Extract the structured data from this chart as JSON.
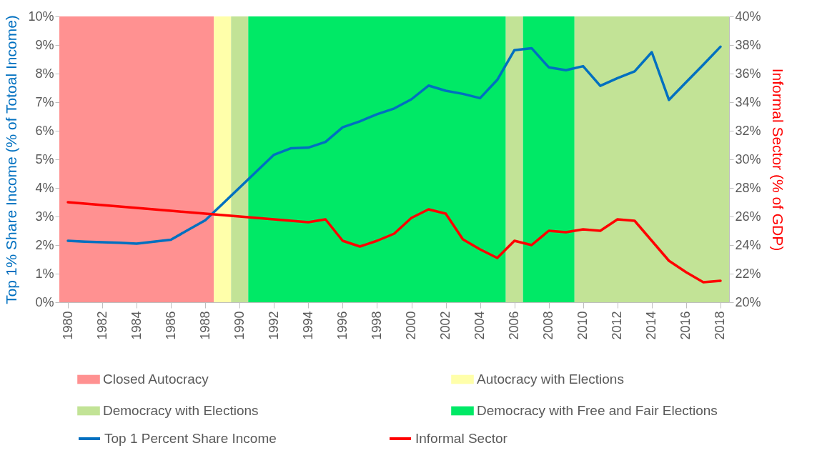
{
  "chart_data": {
    "type": "line",
    "ylabel": "Top 1% Share Income (% of Totoal Income)",
    "y2label": "Informal Sector (% of GDP)",
    "x": [
      1980,
      1981,
      1982,
      1983,
      1984,
      1985,
      1986,
      1987,
      1988,
      1989,
      1990,
      1991,
      1992,
      1993,
      1994,
      1995,
      1996,
      1997,
      1998,
      1999,
      2000,
      2001,
      2002,
      2003,
      2004,
      2005,
      2006,
      2007,
      2008,
      2009,
      2010,
      2011,
      2012,
      2013,
      2014,
      2015,
      2016,
      2017,
      2018
    ],
    "xlim": [
      1979.5,
      2018.5
    ],
    "xticks": [
      1980,
      1982,
      1984,
      1986,
      1988,
      1990,
      1992,
      1994,
      1996,
      1998,
      2000,
      2002,
      2004,
      2006,
      2008,
      2010,
      2012,
      2014,
      2016,
      2018
    ],
    "ylim": [
      0,
      10
    ],
    "yticks": [
      {
        "value": 0,
        "label": "0%"
      },
      {
        "value": 1,
        "label": "1%"
      },
      {
        "value": 2,
        "label": "2%"
      },
      {
        "value": 3,
        "label": "3%"
      },
      {
        "value": 4,
        "label": "4%"
      },
      {
        "value": 5,
        "label": "5%"
      },
      {
        "value": 6,
        "label": "6%"
      },
      {
        "value": 7,
        "label": "7%"
      },
      {
        "value": 8,
        "label": "8%"
      },
      {
        "value": 9,
        "label": "9%"
      },
      {
        "value": 10,
        "label": "10%"
      }
    ],
    "y2lim": [
      20,
      40
    ],
    "y2ticks": [
      {
        "value": 20,
        "label": "20%"
      },
      {
        "value": 22,
        "label": "22%"
      },
      {
        "value": 24,
        "label": "24%"
      },
      {
        "value": 26,
        "label": "26%"
      },
      {
        "value": 28,
        "label": "28%"
      },
      {
        "value": 30,
        "label": "30%"
      },
      {
        "value": 32,
        "label": "32%"
      },
      {
        "value": 34,
        "label": "34%"
      },
      {
        "value": 36,
        "label": "36%"
      },
      {
        "value": 38,
        "label": "38%"
      },
      {
        "value": 40,
        "label": "40%"
      }
    ],
    "series": [
      {
        "name": "Top 1 Percent Share Income",
        "color": "#0070c0",
        "values": [
          2.15,
          2.12,
          2.1,
          2.08,
          2.05,
          2.12,
          2.19,
          2.53,
          2.87,
          3.44,
          4.01,
          4.59,
          5.16,
          5.39,
          5.41,
          5.61,
          6.12,
          6.33,
          6.58,
          6.78,
          7.1,
          7.58,
          7.4,
          7.29,
          7.14,
          7.78,
          8.82,
          8.89,
          8.22,
          8.12,
          8.26,
          7.57,
          7.84,
          8.08,
          8.75,
          7.08,
          7.7,
          8.31,
          8.94
        ]
      },
      {
        "name": "Informal Sector",
        "color": "#ff0000",
        "axis": "y2",
        "values": [
          27.0,
          26.9,
          26.8,
          26.7,
          26.6,
          26.5,
          26.4,
          26.3,
          26.2,
          26.1,
          26.0,
          25.9,
          25.8,
          25.7,
          25.6,
          25.8,
          24.3,
          23.9,
          24.3,
          24.8,
          25.9,
          26.5,
          26.2,
          24.4,
          23.7,
          23.1,
          24.3,
          24.0,
          25.0,
          24.9,
          25.1,
          25.0,
          25.8,
          25.7,
          24.3,
          22.9,
          22.1,
          21.4,
          21.5
        ]
      }
    ],
    "bands": [
      {
        "axis": "x",
        "from": 1979.5,
        "to": 1988.5,
        "label": "Closed Autocracy",
        "color": "#ff9191"
      },
      {
        "axis": "x",
        "from": 1988.5,
        "to": 1989.5,
        "label": "Autocracy with Elections",
        "color": "#ffffaa"
      },
      {
        "axis": "x",
        "from": 1989.5,
        "to": 1990.5,
        "label": "Democracy with Elections",
        "color": "#c2e396"
      },
      {
        "axis": "x",
        "from": 1990.5,
        "to": 2005.5,
        "label": "Democracy with Free and Fair Elections",
        "color": "#00e966"
      },
      {
        "axis": "x",
        "from": 2005.5,
        "to": 2006.5,
        "color": "#c2e396"
      },
      {
        "axis": "x",
        "from": 2006.5,
        "to": 2009.5,
        "color": "#00e966"
      },
      {
        "axis": "x",
        "from": 2009.5,
        "to": 2018.5,
        "color": "#c2e396"
      }
    ],
    "legend": "bottom",
    "grid": false,
    "line_style": "solid",
    "marker": "none"
  }
}
